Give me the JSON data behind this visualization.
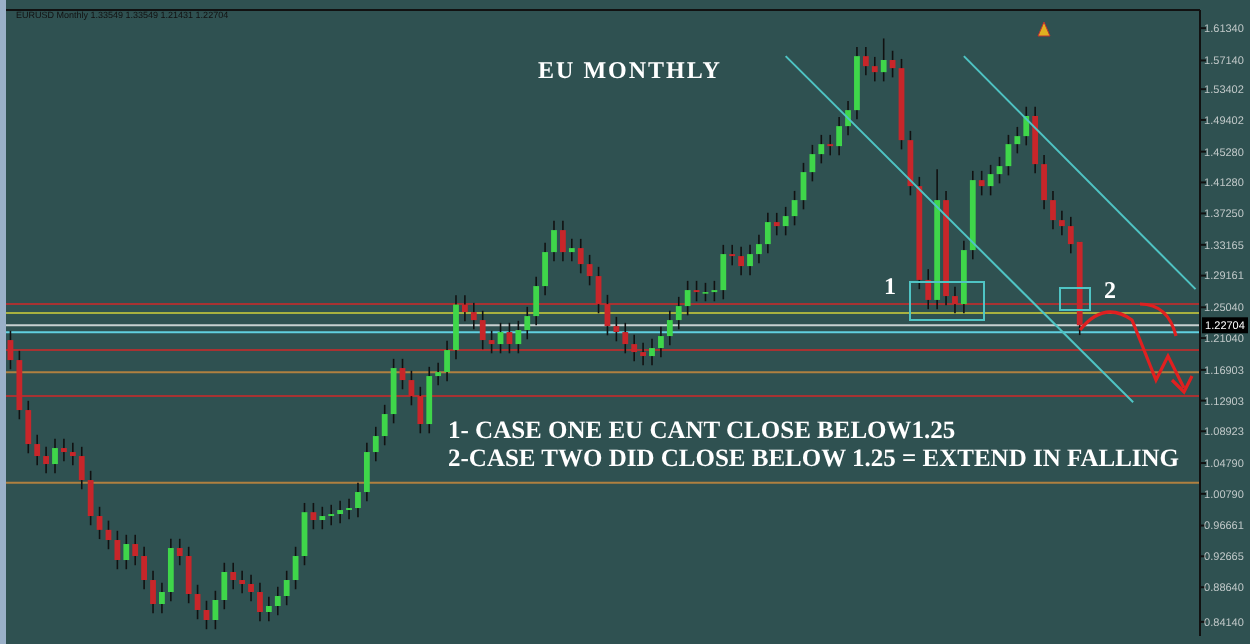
{
  "chart_data": {
    "type": "candlestick",
    "title": "EU MONTHLY",
    "annotations": [
      "EURUSD Monthly 1.33549 1.33549 1.21431 1.22704",
      "1- CASE ONE EU CANT CLOSE BELOW1.25",
      "2-CASE TWO DID CLOSE BELOW 1.25 = EXTEND IN FALLING",
      "1",
      "2"
    ],
    "categories": [
      null,
      null,
      null,
      null,
      null,
      null,
      null,
      null,
      null,
      null,
      null,
      null,
      null,
      null,
      null,
      null,
      null,
      null,
      null,
      null,
      null,
      null,
      null,
      null,
      null,
      null,
      null,
      null,
      null,
      null,
      null,
      null,
      null,
      null,
      null,
      null,
      null,
      null,
      null,
      null,
      null,
      null,
      null,
      null,
      null,
      null,
      null,
      null,
      null,
      null,
      null,
      null,
      null,
      null,
      null,
      null,
      null,
      null,
      null,
      null,
      null,
      null,
      null,
      null,
      null,
      null,
      null,
      null,
      null,
      null,
      null,
      null,
      null,
      null,
      null,
      null,
      null,
      null,
      null,
      null,
      null,
      null,
      null,
      null,
      null,
      null,
      null,
      null,
      null,
      null,
      null,
      null,
      null,
      null,
      null,
      null,
      null,
      null,
      null,
      null,
      null,
      null,
      null,
      null,
      null,
      null,
      null,
      null,
      null,
      null,
      null,
      null,
      null,
      null,
      null,
      null,
      null,
      null,
      null,
      null,
      null,
      null,
      null,
      null,
      null,
      null,
      null,
      null,
      null,
      null,
      null,
      null,
      null,
      null
    ],
    "ohlc": [
      [
        1.2078,
        1.2198,
        1.1698,
        1.1818
      ],
      [
        1.1818,
        1.1938,
        1.1048,
        1.1168
      ],
      [
        1.1168,
        1.1288,
        1.0606,
        1.0726
      ],
      [
        1.0726,
        1.0846,
        1.045,
        1.057
      ],
      [
        1.057,
        1.069,
        1.0346,
        1.0466
      ],
      [
        1.0466,
        1.0794,
        1.0346,
        1.0674
      ],
      [
        1.0674,
        1.0794,
        1.0502,
        1.0622
      ],
      [
        1.0622,
        1.0742,
        1.045,
        1.057
      ],
      [
        1.057,
        1.069,
        1.0138,
        1.0258
      ],
      [
        1.0258,
        1.0378,
        0.967,
        0.979
      ],
      [
        0.979,
        0.991,
        0.949,
        0.961
      ],
      [
        0.961,
        0.973,
        0.9358,
        0.9478
      ],
      [
        0.9478,
        0.9598,
        0.9098,
        0.9218
      ],
      [
        0.9218,
        0.9546,
        0.9098,
        0.9426
      ],
      [
        0.9426,
        0.9546,
        0.915,
        0.927
      ],
      [
        0.927,
        0.939,
        0.8838,
        0.8958
      ],
      [
        0.8958,
        0.9078,
        0.8526,
        0.8646
      ],
      [
        0.8646,
        0.8922,
        0.8526,
        0.8802
      ],
      [
        0.8802,
        0.9494,
        0.8682,
        0.9374
      ],
      [
        0.9374,
        0.9494,
        0.915,
        0.927
      ],
      [
        0.927,
        0.939,
        0.8656,
        0.8776
      ],
      [
        0.8776,
        0.8896,
        0.8448,
        0.8568
      ],
      [
        0.8568,
        0.8688,
        0.8318,
        0.8438
      ],
      [
        0.8438,
        0.8818,
        0.8318,
        0.8698
      ],
      [
        0.8698,
        0.9182,
        0.8578,
        0.9062
      ],
      [
        0.9062,
        0.9182,
        0.8838,
        0.8958
      ],
      [
        0.8958,
        0.9078,
        0.8786,
        0.8906
      ],
      [
        0.8906,
        0.9026,
        0.8682,
        0.8802
      ],
      [
        0.8802,
        0.8922,
        0.8422,
        0.8542
      ],
      [
        0.8542,
        0.874,
        0.8422,
        0.862
      ],
      [
        0.862,
        0.887,
        0.85,
        0.875
      ],
      [
        0.875,
        0.9078,
        0.863,
        0.8958
      ],
      [
        0.8958,
        0.939,
        0.8838,
        0.927
      ],
      [
        0.927,
        0.996,
        0.915,
        0.984
      ],
      [
        0.984,
        0.996,
        0.9618,
        0.9738
      ],
      [
        0.9738,
        0.991,
        0.9618,
        0.979
      ],
      [
        0.979,
        0.9936,
        0.967,
        0.9816
      ],
      [
        0.9816,
        0.9988,
        0.9696,
        0.9868
      ],
      [
        0.9868,
        1.0014,
        0.9748,
        0.9894
      ],
      [
        0.9894,
        1.0222,
        0.9774,
        1.0102
      ],
      [
        1.0102,
        1.0742,
        0.9982,
        1.0622
      ],
      [
        1.0622,
        1.095,
        1.0502,
        1.083
      ],
      [
        1.083,
        1.1236,
        1.071,
        1.1116
      ],
      [
        1.1116,
        1.1834,
        1.0996,
        1.1714
      ],
      [
        1.1714,
        1.1834,
        1.1438,
        1.1558
      ],
      [
        1.1558,
        1.1678,
        1.123,
        1.135
      ],
      [
        1.135,
        1.147,
        1.0866,
        1.0986
      ],
      [
        1.0986,
        1.173,
        1.0866,
        1.161
      ],
      [
        1.161,
        1.1782,
        1.149,
        1.1662
      ],
      [
        1.1662,
        1.2068,
        1.1542,
        1.1948
      ],
      [
        1.1948,
        1.266,
        1.1828,
        1.254
      ],
      [
        1.254,
        1.266,
        1.2322,
        1.2442
      ],
      [
        1.2442,
        1.2562,
        1.2218,
        1.2338
      ],
      [
        1.2338,
        1.2458,
        1.1958,
        1.2078
      ],
      [
        1.2078,
        1.2198,
        1.1906,
        1.2026
      ],
      [
        1.2026,
        1.2302,
        1.1906,
        1.2182
      ],
      [
        1.2182,
        1.2302,
        1.1906,
        1.2026
      ],
      [
        1.2026,
        1.2328,
        1.1906,
        1.2208
      ],
      [
        1.2208,
        1.251,
        1.2088,
        1.239
      ],
      [
        1.239,
        1.29,
        1.227,
        1.278
      ],
      [
        1.278,
        1.3342,
        1.266,
        1.3222
      ],
      [
        1.3222,
        1.3628,
        1.3102,
        1.3508
      ],
      [
        1.3508,
        1.3628,
        1.3102,
        1.3222
      ],
      [
        1.3222,
        1.3394,
        1.3102,
        1.3274
      ],
      [
        1.3274,
        1.3394,
        1.2946,
        1.3066
      ],
      [
        1.3066,
        1.3186,
        1.279,
        1.291
      ],
      [
        1.291,
        1.303,
        1.2426,
        1.2546
      ],
      [
        1.2546,
        1.2666,
        1.214,
        1.226
      ],
      [
        1.226,
        1.238,
        1.2062,
        1.2182
      ],
      [
        1.2182,
        1.2302,
        1.1906,
        1.2026
      ],
      [
        1.2026,
        1.2146,
        1.1802,
        1.1922
      ],
      [
        1.1922,
        1.2042,
        1.175,
        1.187
      ],
      [
        1.187,
        1.2094,
        1.175,
        1.1974
      ],
      [
        1.1974,
        1.225,
        1.1854,
        1.213
      ],
      [
        1.213,
        1.2458,
        1.201,
        1.2338
      ],
      [
        1.2338,
        1.264,
        1.2218,
        1.252
      ],
      [
        1.252,
        1.2848,
        1.24,
        1.2728
      ],
      [
        1.2728,
        1.2848,
        1.2582,
        1.2702
      ],
      [
        1.2702,
        1.2822,
        1.2582,
        1.2702
      ],
      [
        1.2702,
        1.2848,
        1.2582,
        1.2728
      ],
      [
        1.2728,
        1.3316,
        1.2608,
        1.3196
      ],
      [
        1.3196,
        1.3316,
        1.305,
        1.317
      ],
      [
        1.317,
        1.329,
        1.292,
        1.304
      ],
      [
        1.304,
        1.3316,
        1.292,
        1.3196
      ],
      [
        1.3196,
        1.3446,
        1.3076,
        1.3326
      ],
      [
        1.3326,
        1.3732,
        1.3206,
        1.3612
      ],
      [
        1.3612,
        1.3732,
        1.344,
        1.356
      ],
      [
        1.356,
        1.381,
        1.344,
        1.369
      ],
      [
        1.369,
        1.4018,
        1.357,
        1.3898
      ],
      [
        1.3898,
        1.4382,
        1.3778,
        1.4262
      ],
      [
        1.4262,
        1.4616,
        1.4142,
        1.4496
      ],
      [
        1.4496,
        1.4746,
        1.4376,
        1.4626
      ],
      [
        1.4626,
        1.4746,
        1.448,
        1.46
      ],
      [
        1.46,
        1.498,
        1.448,
        1.486
      ],
      [
        1.486,
        1.5188,
        1.474,
        1.5068
      ],
      [
        1.5068,
        1.589,
        1.4948,
        1.577
      ],
      [
        1.577,
        1.589,
        1.552,
        1.564
      ],
      [
        1.564,
        1.576,
        1.5442,
        1.5562
      ],
      [
        1.5562,
        1.6,
        1.5442,
        1.572
      ],
      [
        1.572,
        1.584,
        1.5494,
        1.5614
      ],
      [
        1.5614,
        1.5734,
        1.4558,
        1.4678
      ],
      [
        1.4678,
        1.4798,
        1.396,
        1.408
      ],
      [
        1.408,
        1.42,
        1.274,
        1.286
      ],
      [
        1.286,
        1.3,
        1.248,
        1.26
      ],
      [
        1.26,
        1.43,
        1.248,
        1.3898
      ],
      [
        1.3898,
        1.4018,
        1.253,
        1.265
      ],
      [
        1.265,
        1.277,
        1.2426,
        1.2546
      ],
      [
        1.2546,
        1.3368,
        1.2426,
        1.3248
      ],
      [
        1.3248,
        1.4278,
        1.3128,
        1.4158
      ],
      [
        1.4158,
        1.4278,
        1.396,
        1.408
      ],
      [
        1.408,
        1.4356,
        1.396,
        1.4236
      ],
      [
        1.4236,
        1.446,
        1.4116,
        1.434
      ],
      [
        1.434,
        1.4746,
        1.422,
        1.4626
      ],
      [
        1.4626,
        1.485,
        1.4506,
        1.473
      ],
      [
        1.473,
        1.5112,
        1.461,
        1.4992
      ],
      [
        1.4992,
        1.5112,
        1.4246,
        1.4366
      ],
      [
        1.4366,
        1.4486,
        1.3778,
        1.3898
      ],
      [
        1.3898,
        1.4018,
        1.3518,
        1.3638
      ],
      [
        1.3638,
        1.3758,
        1.344,
        1.356
      ],
      [
        1.356,
        1.368,
        1.3206,
        1.3326
      ],
      [
        1.33549,
        1.33549,
        1.21431,
        1.22704
      ],
      null,
      null,
      null,
      null,
      null,
      null,
      null,
      null,
      null,
      null,
      null,
      null,
      null
    ],
    "series": [
      {
        "type": "line",
        "color": "#4fc4c4",
        "values": [
          null,
          null,
          null,
          null,
          null,
          null,
          null,
          null,
          null,
          null,
          null,
          null,
          null,
          null,
          null,
          null,
          null,
          null,
          null,
          null,
          null,
          null,
          null,
          null,
          null,
          null,
          null,
          null,
          null,
          null,
          null,
          null,
          null,
          null,
          null,
          null,
          null,
          null,
          null,
          null,
          null,
          null,
          null,
          null,
          null,
          null,
          null,
          null,
          null,
          null,
          null,
          null,
          null,
          null,
          null,
          null,
          null,
          null,
          null,
          null,
          null,
          null,
          null,
          null,
          null,
          null,
          null,
          null,
          null,
          null,
          null,
          null,
          null,
          null,
          null,
          null,
          null,
          null,
          null,
          null,
          null,
          null,
          null,
          null,
          null,
          null,
          null,
          1.577,
          null,
          null,
          null,
          null,
          null,
          null,
          null,
          null,
          null,
          null,
          null,
          null,
          null,
          null,
          null,
          null,
          null,
          null,
          null,
          null,
          null,
          null,
          null,
          null,
          null,
          null,
          null,
          null,
          null,
          null,
          null,
          null,
          null,
          null,
          null,
          null,
          null,
          null,
          1.127,
          null,
          null,
          null,
          null,
          null,
          null,
          null
        ]
      },
      {
        "type": "line",
        "color": "#4fc4c4",
        "values": [
          null,
          null,
          null,
          null,
          null,
          null,
          null,
          null,
          null,
          null,
          null,
          null,
          null,
          null,
          null,
          null,
          null,
          null,
          null,
          null,
          null,
          null,
          null,
          null,
          null,
          null,
          null,
          null,
          null,
          null,
          null,
          null,
          null,
          null,
          null,
          null,
          null,
          null,
          null,
          null,
          null,
          null,
          null,
          null,
          null,
          null,
          null,
          null,
          null,
          null,
          null,
          null,
          null,
          null,
          null,
          null,
          null,
          null,
          null,
          null,
          null,
          null,
          null,
          null,
          null,
          null,
          null,
          null,
          null,
          null,
          null,
          null,
          null,
          null,
          null,
          null,
          null,
          null,
          null,
          null,
          null,
          null,
          null,
          null,
          null,
          null,
          null,
          null,
          null,
          null,
          null,
          null,
          null,
          null,
          null,
          null,
          null,
          null,
          null,
          null,
          null,
          null,
          null,
          null,
          null,
          null,
          null,
          1.577,
          null,
          null,
          null,
          null,
          null,
          null,
          null,
          null,
          null,
          null,
          null,
          null,
          null,
          null,
          null,
          null,
          null,
          null,
          null,
          null,
          null,
          null,
          null,
          null,
          null,
          1.274
        ]
      }
    ],
    "ylim": [
      0.823,
      1.637
    ],
    "yticks": [
      {
        "value": 1.6134,
        "label": "1.61340"
      },
      {
        "value": 1.5714,
        "label": "1.57140"
      },
      {
        "value": 1.53402,
        "label": "1.53402"
      },
      {
        "value": 1.49402,
        "label": "1.49402"
      },
      {
        "value": 1.4528,
        "label": "1.45280"
      },
      {
        "value": 1.4128,
        "label": "1.41280"
      },
      {
        "value": 1.3725,
        "label": "1.37250"
      },
      {
        "value": 1.33165,
        "label": "1.33165"
      },
      {
        "value": 1.29161,
        "label": "1.29161"
      },
      {
        "value": 1.2504,
        "label": "1.25040"
      },
      {
        "value": 1.2104,
        "label": "1.21040"
      },
      {
        "value": 1.16903,
        "label": "1.16903"
      },
      {
        "value": 1.12903,
        "label": "1.12903"
      },
      {
        "value": 1.08923,
        "label": "1.08923"
      },
      {
        "value": 1.0479,
        "label": "1.04790"
      },
      {
        "value": 1.0079,
        "label": "1.00790"
      },
      {
        "value": 0.96661,
        "label": "0.96661"
      },
      {
        "value": 0.92665,
        "label": "0.92665"
      },
      {
        "value": 0.8864,
        "label": "0.88640"
      },
      {
        "value": 0.8414,
        "label": "0.84140"
      }
    ],
    "tick_labels": "y",
    "ref_lines": [
      {
        "axis": "y",
        "value": 1.2546,
        "color": "#a83232"
      },
      {
        "axis": "y",
        "value": 1.243,
        "color": "#a8b040"
      },
      {
        "axis": "y",
        "value": 1.22704,
        "label": "1.22704",
        "color": "#c8d0d0"
      },
      {
        "axis": "y",
        "value": 1.218,
        "color": "#60d0e0"
      },
      {
        "axis": "y",
        "value": 1.195,
        "color": "#a83232"
      },
      {
        "axis": "y",
        "value": 1.166,
        "color": "#b08040"
      },
      {
        "axis": "y",
        "value": 1.135,
        "color": "#a83232"
      },
      {
        "axis": "y",
        "value": 1.0222,
        "color": "#b08040"
      }
    ]
  }
}
